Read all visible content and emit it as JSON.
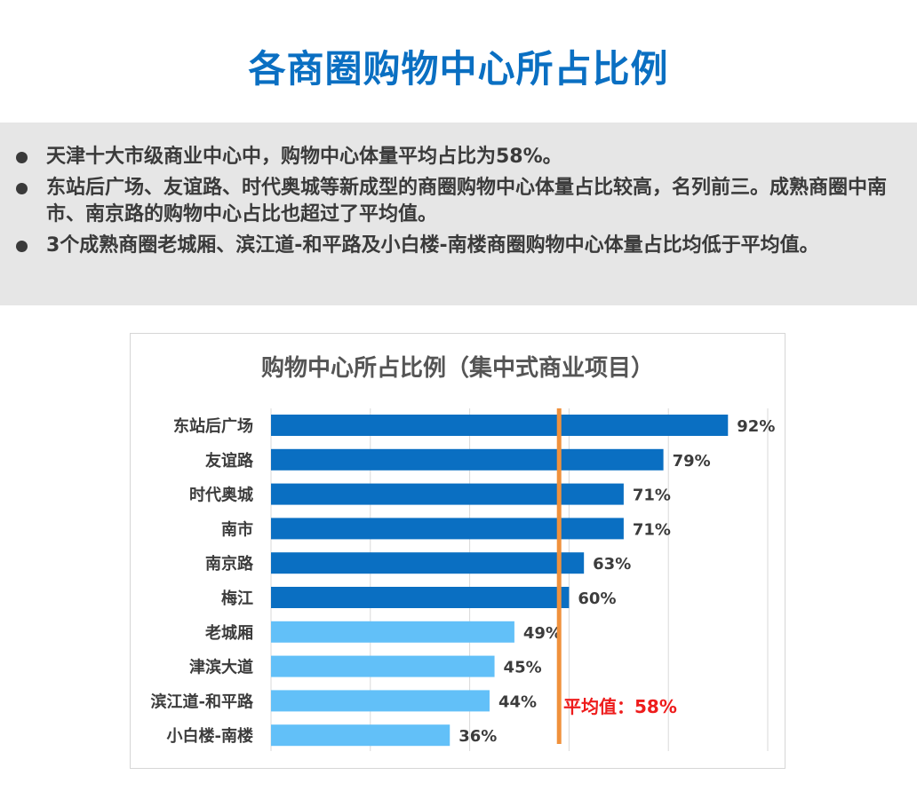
{
  "page": {
    "title": "各商圈购物中心所占比例"
  },
  "summary": {
    "bullets": [
      "天津十大市级商业中心中，购物中心体量平均占比为58%。",
      "东站后广场、友谊路、时代奥城等新成型的商圈购物中心体量占比较高，名列前三。成熟商圈中南市、南京路的购物中心占比也超过了平均值。",
      "3个成熟商圈老城厢、滨江道-和平路及小白楼-南楼商圈购物中心体量占比均低于平均值。"
    ]
  },
  "chart_data": {
    "type": "bar",
    "orientation": "horizontal",
    "title": "购物中心所占比例（集中式商业项目）",
    "categories": [
      "东站后广场",
      "友谊路",
      "时代奥城",
      "南市",
      "南京路",
      "梅江",
      "老城厢",
      "津滨大道",
      "滨江道-和平路",
      "小白楼-南楼"
    ],
    "values": [
      92,
      79,
      71,
      71,
      63,
      60,
      49,
      45,
      44,
      36
    ],
    "value_labels": [
      "92%",
      "79%",
      "71%",
      "71%",
      "63%",
      "60%",
      "49%",
      "45%",
      "44%",
      "36%"
    ],
    "xlim": [
      0,
      100
    ],
    "grid": true,
    "average": 58,
    "average_label": "平均值：58%",
    "colors": {
      "above_average": "#0a6fc2",
      "below_average": "#62c0f8",
      "average_line": "#f0913c",
      "average_text": "#ee1c1c",
      "gridline": "#d9d9d9"
    }
  }
}
